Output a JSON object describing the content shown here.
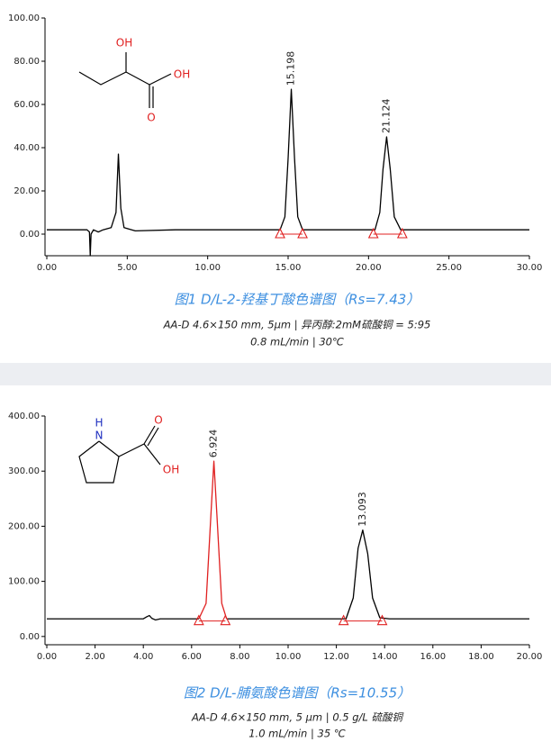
{
  "chart_data": [
    {
      "type": "line",
      "title": "图1 D/L-2-羟基丁酸色谱图（Rs=7.43）",
      "subtitle": [
        "AA-D 4.6×150 mm, 5μm  |  异丙醇:2mM硫酸铜 = 5:95",
        "0.8 mL/min  |  30℃"
      ],
      "structure_labels": [
        "OH",
        "OH",
        "O"
      ],
      "xlim": [
        0,
        30
      ],
      "ylim": [
        -10,
        100
      ],
      "xticks": [
        {
          "value": 0,
          "label": "0.00"
        },
        {
          "value": 5,
          "label": "5.00"
        },
        {
          "value": 10,
          "label": "10.00"
        },
        {
          "value": 15,
          "label": "15.00"
        },
        {
          "value": 20,
          "label": "20.00"
        },
        {
          "value": 25,
          "label": "25.00"
        },
        {
          "value": 30,
          "label": "30.00"
        }
      ],
      "yticks": [
        {
          "value": 0,
          "label": "0.00"
        },
        {
          "value": 20,
          "label": "20.00"
        },
        {
          "value": 40,
          "label": "40.00"
        },
        {
          "value": 60,
          "label": "60.00"
        },
        {
          "value": 80,
          "label": "80.00"
        },
        {
          "value": 100,
          "label": "100.00"
        }
      ],
      "series": [
        {
          "color": "#000000",
          "x": [
            0,
            2.5,
            2.65,
            2.7,
            2.75,
            2.9,
            3.2,
            3.5,
            4.0,
            4.3,
            4.45,
            4.6,
            4.8,
            5.5,
            8,
            14.5,
            14.8,
            15.0,
            15.198,
            15.4,
            15.6,
            15.9,
            20.4,
            20.7,
            20.9,
            21.124,
            21.35,
            21.6,
            22.0,
            30
          ],
          "values": [
            2,
            2,
            1,
            -10,
            0,
            2,
            1,
            2,
            3,
            10,
            37,
            12,
            3,
            1.5,
            2,
            2,
            8,
            35,
            67,
            35,
            8,
            2,
            2,
            10,
            30,
            45,
            30,
            8,
            2,
            2
          ]
        }
      ],
      "annotations": [
        {
          "x": 15.198,
          "y": 67
        },
        {
          "x": 21.124,
          "y": 45
        }
      ],
      "integration_marks": {
        "x": [
          14.5,
          15.9,
          20.3,
          22.1
        ],
        "y": 0,
        "color": "#e02020"
      }
    },
    {
      "type": "line",
      "title": "图2 D/L-脯氨酸色谱图（Rs=10.55）",
      "subtitle": [
        "AA-D 4.6×150 mm, 5 μm  |  0.5 g/L 硫酸铜",
        "1.0 mL/min  |  35 ℃"
      ],
      "structure_labels": [
        "H",
        "N",
        "O",
        "OH"
      ],
      "xlim": [
        0,
        20
      ],
      "ylim": [
        -15,
        400
      ],
      "xticks": [
        {
          "value": 0,
          "label": "0.00"
        },
        {
          "value": 2,
          "label": "2.00"
        },
        {
          "value": 4,
          "label": "4.00"
        },
        {
          "value": 6,
          "label": "6.00"
        },
        {
          "value": 8,
          "label": "8.00"
        },
        {
          "value": 10,
          "label": "10.00"
        },
        {
          "value": 12,
          "label": "12.00"
        },
        {
          "value": 14,
          "label": "14.00"
        },
        {
          "value": 16,
          "label": "16.00"
        },
        {
          "value": 18,
          "label": "18.00"
        },
        {
          "value": 20,
          "label": "20.00"
        }
      ],
      "yticks": [
        {
          "value": 0,
          "label": "0.00"
        },
        {
          "value": 100,
          "label": "100.00"
        },
        {
          "value": 200,
          "label": "200.00"
        },
        {
          "value": 300,
          "label": "300.00"
        },
        {
          "value": 400,
          "label": "400.00"
        }
      ],
      "series": [
        {
          "color": "#000000",
          "x": [
            0,
            4.0,
            4.15,
            4.25,
            4.35,
            4.5,
            4.7,
            6.3,
            6.35,
            7.45,
            12.4,
            12.7,
            12.9,
            13.093,
            13.3,
            13.5,
            13.8,
            14.2,
            20
          ],
          "values": [
            32,
            32,
            36,
            38,
            33,
            30,
            32,
            32,
            null,
            32,
            32,
            70,
            160,
            193,
            150,
            70,
            34,
            32,
            32
          ]
        },
        {
          "color": "#e02020",
          "x": [
            6.3,
            6.6,
            6.8,
            6.924,
            7.05,
            7.25,
            7.45
          ],
          "values": [
            32,
            60,
            220,
            318,
            220,
            60,
            32
          ]
        }
      ],
      "annotations": [
        {
          "x": 6.924,
          "y": 318
        },
        {
          "x": 13.093,
          "y": 193
        }
      ],
      "integration_marks": {
        "x": [
          6.3,
          7.4,
          12.3,
          13.9
        ],
        "y": 28,
        "color": "#e02020"
      }
    }
  ]
}
